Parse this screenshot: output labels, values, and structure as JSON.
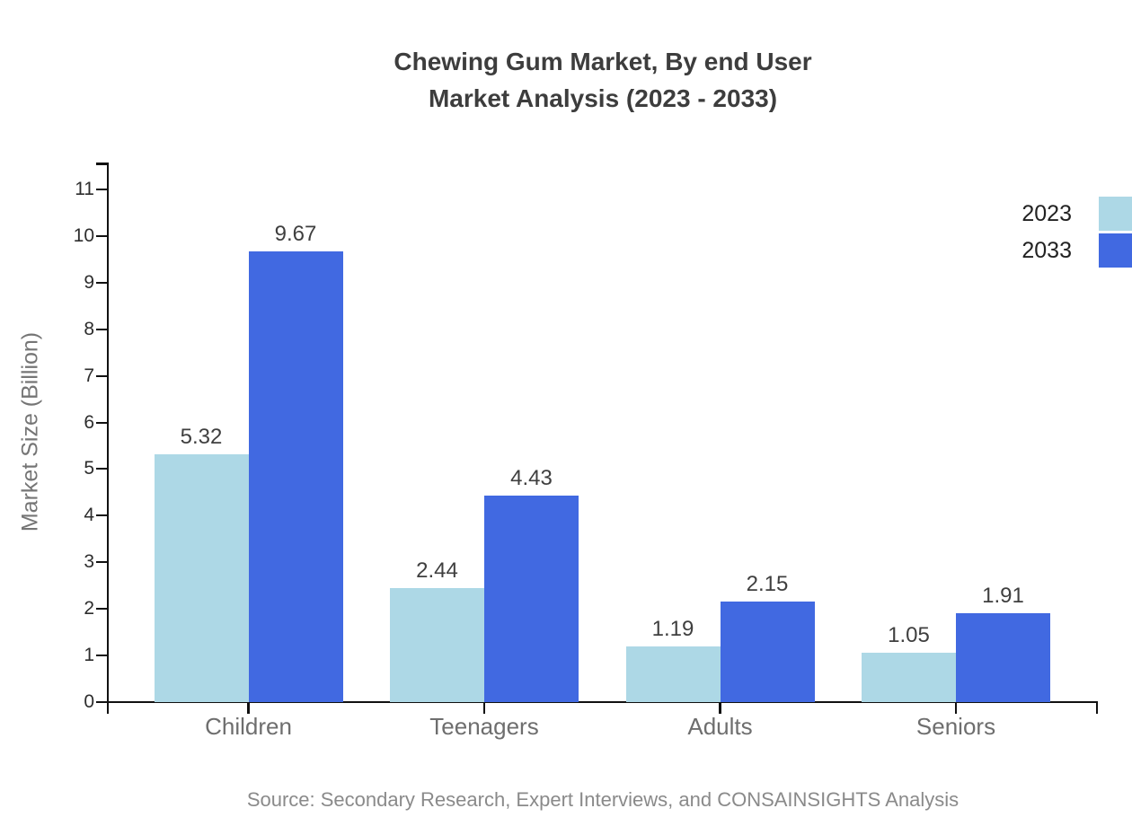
{
  "title": {
    "line1": "Chewing Gum Market, By end User",
    "line2": "Market Analysis (2023 - 2033)"
  },
  "source": "Source: Secondary Research, Expert Interviews, and CONSAINSIGHTS Analysis",
  "chart_data": {
    "type": "bar",
    "title": "Chewing Gum Market, By end User Market Analysis (2023 - 2033)",
    "categories": [
      "Children",
      "Teenagers",
      "Adults",
      "Seniors"
    ],
    "series": [
      {
        "name": "2023",
        "color": "#ADD8E6",
        "values": [
          5.32,
          2.44,
          1.19,
          1.05
        ]
      },
      {
        "name": "2033",
        "color": "#4169E1",
        "values": [
          9.67,
          4.43,
          2.15,
          1.91
        ]
      }
    ],
    "xlabel": "",
    "ylabel": "Market Size (Billion)",
    "ylim": [
      0,
      11
    ],
    "yticks": [
      0,
      1,
      2,
      3,
      4,
      5,
      6,
      7,
      8,
      9,
      10,
      11
    ],
    "grid": false,
    "legend_position": "top-right",
    "value_labels": true,
    "value_label_format": "0.00",
    "axis_color": "#111111",
    "text_color": "#3f3f3f"
  }
}
